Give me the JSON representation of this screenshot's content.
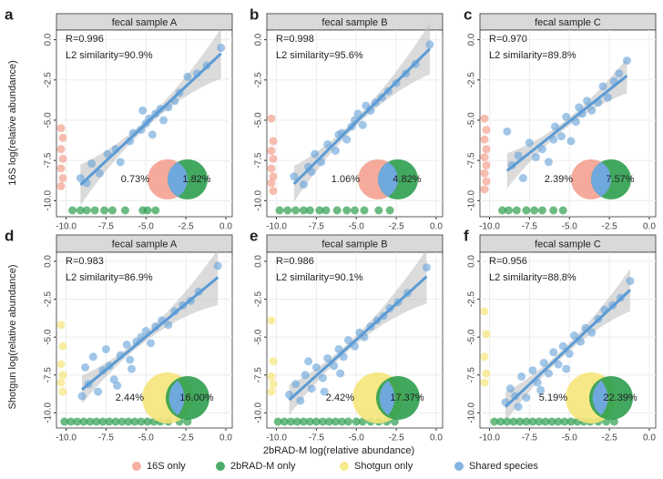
{
  "chart_data": [
    {
      "type": "scatter",
      "panel": "a",
      "title": "fecal sample A",
      "annotations": [
        "R=0.996",
        "L2 similarity=90.9%"
      ],
      "venn": {
        "values": [
          0.73,
          1.82
        ],
        "value_labels": [
          "0.73%",
          "1.82%"
        ],
        "colors": [
          "#f4a190",
          "#2e9e4f"
        ]
      },
      "xlim": [
        -10.6,
        0.4
      ],
      "ylim": [
        -11,
        0.6
      ],
      "xticks": [
        {
          "value": -10,
          "label": "-10.0"
        },
        -7.5,
        {
          "value": -5,
          "label": "-5.0"
        },
        -2.5,
        {
          "value": 0,
          "label": "0.0"
        }
      ],
      "yticks": [
        {
          "value": -10,
          "label": "-10.0"
        },
        -7.5,
        {
          "value": -5,
          "label": "-5.0"
        },
        -2.5,
        {
          "value": 0,
          "label": "0.0"
        }
      ],
      "grid": true,
      "shared": {
        "color": "#6fa8dc",
        "x": [
          -9.1,
          -8.7,
          -8.4,
          -7.9,
          -7.4,
          -6.6,
          -6.0,
          -5.8,
          -5.3,
          -5.0,
          -4.8,
          -4.6,
          -4.4,
          -4.1,
          -3.9,
          -3.6,
          -3.2,
          -2.9,
          -2.4,
          -1.8,
          -1.2,
          -0.3,
          -5.2,
          -6.9
        ],
        "values": [
          -8.6,
          -8.9,
          -7.7,
          -8.3,
          -7.1,
          -7.6,
          -6.3,
          -5.8,
          -5.6,
          -5.2,
          -4.9,
          -5.9,
          -4.6,
          -4.3,
          -5.0,
          -4.2,
          -3.8,
          -3.3,
          -2.3,
          -2.1,
          -1.6,
          -0.5,
          -4.4,
          -6.8
        ]
      },
      "left_only": {
        "color": "#f4a190",
        "values": [
          -5.5,
          -6.1,
          -6.8,
          -7.4,
          -8.0,
          -8.6,
          -9.1
        ]
      },
      "bottom_only": {
        "color": "#2e9e4f",
        "x": [
          -9.6,
          -9.1,
          -8.7,
          -8.2,
          -7.6,
          -7.1,
          -6.3,
          -5.2,
          -4.9,
          -4.4
        ]
      }
    },
    {
      "type": "scatter",
      "panel": "b",
      "title": "fecal sample B",
      "annotations": [
        "R=0.998",
        "L2 similarity=95.6%"
      ],
      "venn": {
        "values": [
          1.06,
          4.82
        ],
        "value_labels": [
          "1.06%",
          "4.82%"
        ],
        "colors": [
          "#f4a190",
          "#2e9e4f"
        ]
      },
      "xlim": [
        -10.6,
        0.4
      ],
      "ylim": [
        -11,
        0.6
      ],
      "xticks": [
        {
          "value": -10,
          "label": "-10.0"
        },
        -7.5,
        {
          "value": -5,
          "label": "-5.0"
        },
        -2.5,
        {
          "value": 0,
          "label": "0.0"
        }
      ],
      "yticks": [
        {
          "value": -10,
          "label": "-10.0"
        },
        -7.5,
        {
          "value": -5,
          "label": "-5.0"
        },
        -2.5,
        {
          "value": 0,
          "label": "0.0"
        }
      ],
      "grid": true,
      "shared": {
        "color": "#6fa8dc",
        "x": [
          -8.9,
          -8.3,
          -8.0,
          -7.6,
          -7.2,
          -6.8,
          -6.3,
          -5.9,
          -5.6,
          -5.3,
          -5.1,
          -4.9,
          -4.6,
          -4.4,
          -4.1,
          -3.8,
          -3.4,
          -3.0,
          -2.5,
          -1.9,
          -1.3,
          -0.4,
          -6.1,
          -7.8
        ],
        "values": [
          -8.5,
          -9.0,
          -7.9,
          -7.1,
          -7.6,
          -6.5,
          -6.9,
          -5.8,
          -6.2,
          -5.4,
          -5.0,
          -4.6,
          -5.3,
          -4.1,
          -4.4,
          -3.9,
          -3.6,
          -3.2,
          -2.7,
          -2.1,
          -1.5,
          -0.3,
          -5.9,
          -8.2
        ]
      },
      "left_only": {
        "color": "#f4a190",
        "values": [
          -4.9,
          -6.3,
          -6.9,
          -7.4,
          -8.0,
          -8.5,
          -8.9,
          -9.4
        ]
      },
      "bottom_only": {
        "color": "#2e9e4f",
        "x": [
          -9.8,
          -9.3,
          -8.8,
          -8.3,
          -7.9,
          -7.3,
          -6.9,
          -6.2,
          -5.6,
          -5.1,
          -4.5,
          -3.6,
          -2.9
        ]
      }
    },
    {
      "type": "scatter",
      "panel": "c",
      "title": "fecal sample C",
      "annotations": [
        "R=0.970",
        "L2 similarity=89.8%"
      ],
      "venn": {
        "values": [
          2.39,
          7.57
        ],
        "value_labels": [
          "2.39%",
          "7.57%"
        ],
        "colors": [
          "#f4a190",
          "#2e9e4f"
        ]
      },
      "xlim": [
        -10.6,
        0.4
      ],
      "ylim": [
        -11,
        0.6
      ],
      "xticks": [
        {
          "value": -10,
          "label": "-10.0"
        },
        -7.5,
        {
          "value": -5,
          "label": "-5.0"
        },
        -2.5,
        {
          "value": 0,
          "label": "0.0"
        }
      ],
      "yticks": [
        {
          "value": -10,
          "label": "-10.0"
        },
        -7.5,
        {
          "value": -5,
          "label": "-5.0"
        },
        -2.5,
        {
          "value": 0,
          "label": "0.0"
        }
      ],
      "grid": true,
      "shared": {
        "color": "#6fa8dc",
        "x": [
          -8.6,
          -8.2,
          -7.9,
          -7.5,
          -7.1,
          -6.7,
          -6.3,
          -5.9,
          -5.5,
          -5.2,
          -4.9,
          -4.6,
          -4.2,
          -3.9,
          -3.6,
          -3.2,
          -2.9,
          -2.6,
          -2.2,
          -1.9,
          -1.4,
          -8.9,
          -6.0,
          -4.4
        ],
        "values": [
          -7.8,
          -7.2,
          -8.6,
          -6.4,
          -7.3,
          -6.8,
          -7.6,
          -5.4,
          -6.0,
          -4.8,
          -6.3,
          -5.1,
          -4.6,
          -3.8,
          -4.4,
          -3.9,
          -2.9,
          -3.6,
          -2.6,
          -2.1,
          -1.3,
          -5.7,
          -6.2,
          -4.2
        ]
      },
      "left_only": {
        "color": "#f4a190",
        "values": [
          -4.9,
          -5.6,
          -6.2,
          -6.8,
          -7.3,
          -7.8,
          -8.3,
          -8.8,
          -9.3
        ]
      },
      "bottom_only": {
        "color": "#2e9e4f",
        "x": [
          -9.2,
          -8.8,
          -8.3,
          -7.7,
          -7.2,
          -6.7,
          -6.0,
          -5.4
        ]
      }
    },
    {
      "type": "scatter",
      "panel": "d",
      "title": "fecal sample A",
      "annotations": [
        "R=0.983",
        "L2 similarity=86.9%"
      ],
      "venn": {
        "values": [
          2.44,
          16.0
        ],
        "value_labels": [
          "2.44%",
          "16.00%"
        ],
        "colors": [
          "#f5e67a",
          "#2e9e4f"
        ]
      },
      "xlim": [
        -10.6,
        0.4
      ],
      "ylim": [
        -11,
        0.6
      ],
      "xticks": [
        {
          "value": -10,
          "label": "-10.0"
        },
        -7.5,
        {
          "value": -5,
          "label": "-5.0"
        },
        -2.5,
        {
          "value": 0,
          "label": "0.0"
        }
      ],
      "yticks": [
        {
          "value": -10,
          "label": "-10.0"
        },
        -7.5,
        {
          "value": -5,
          "label": "-5.0"
        },
        -2.5,
        {
          "value": 0,
          "label": "0.0"
        }
      ],
      "grid": true,
      "shared": {
        "color": "#6fa8dc",
        "x": [
          -9.0,
          -8.6,
          -8.3,
          -8.0,
          -7.7,
          -7.3,
          -7.0,
          -6.6,
          -6.2,
          -5.9,
          -5.6,
          -5.3,
          -5.0,
          -4.7,
          -4.4,
          -4.0,
          -3.6,
          -3.2,
          -2.7,
          -2.2,
          -1.7,
          -0.5,
          -8.8,
          -7.5,
          -6.8,
          -6.0
        ],
        "values": [
          -8.9,
          -8.1,
          -6.3,
          -8.6,
          -7.2,
          -6.9,
          -7.8,
          -6.2,
          -5.5,
          -7.1,
          -5.3,
          -5.0,
          -4.6,
          -5.4,
          -4.3,
          -3.9,
          -4.2,
          -3.3,
          -2.9,
          -2.6,
          -2.0,
          -0.3,
          -7.0,
          -5.8,
          -8.2,
          -6.5
        ]
      },
      "left_only": {
        "color": "#f5e67a",
        "values": [
          -4.2,
          -5.6,
          -6.8,
          -7.5,
          -8.0,
          -8.6
        ]
      },
      "bottom_only": {
        "color": "#2e9e4f",
        "x": [
          -10.1,
          -9.7,
          -9.3,
          -8.9,
          -8.5,
          -8.1,
          -7.7,
          -7.3,
          -6.9,
          -6.5,
          -6.1,
          -5.7,
          -5.3,
          -4.9,
          -4.5,
          -4.1,
          -3.6,
          -2.9,
          -2.4
        ]
      }
    },
    {
      "type": "scatter",
      "panel": "e",
      "title": "fecal sample B",
      "annotations": [
        "R=0.986",
        "L2 similarity=90.1%"
      ],
      "venn": {
        "values": [
          2.42,
          17.37
        ],
        "value_labels": [
          "2.42%",
          "17.37%"
        ],
        "colors": [
          "#f5e67a",
          "#2e9e4f"
        ]
      },
      "xlim": [
        -10.6,
        0.4
      ],
      "ylim": [
        -11,
        0.6
      ],
      "xticks": [
        {
          "value": -10,
          "label": "-10.0"
        },
        -7.5,
        {
          "value": -5,
          "label": "-5.0"
        },
        -2.5,
        {
          "value": 0,
          "label": "0.0"
        }
      ],
      "yticks": [
        {
          "value": -10,
          "label": "-10.0"
        },
        -7.5,
        {
          "value": -5,
          "label": "-5.0"
        },
        -2.5,
        {
          "value": 0,
          "label": "0.0"
        }
      ],
      "grid": true,
      "shared": {
        "color": "#6fa8dc",
        "x": [
          -9.2,
          -8.8,
          -8.5,
          -8.2,
          -7.8,
          -7.5,
          -7.1,
          -6.8,
          -6.4,
          -6.1,
          -5.8,
          -5.5,
          -5.1,
          -4.8,
          -4.5,
          -4.1,
          -3.7,
          -3.3,
          -2.9,
          -2.4,
          -1.8,
          -0.6,
          -8.0,
          -7.0,
          -6.0
        ],
        "values": [
          -8.8,
          -8.1,
          -9.2,
          -7.5,
          -8.4,
          -7.0,
          -7.7,
          -6.4,
          -6.9,
          -5.8,
          -6.3,
          -5.2,
          -5.6,
          -4.7,
          -5.0,
          -4.3,
          -3.9,
          -3.6,
          -3.1,
          -2.7,
          -2.1,
          -0.4,
          -6.6,
          -8.6,
          -7.4
        ]
      },
      "left_only": {
        "color": "#f5e67a",
        "values": [
          -3.9,
          -6.6,
          -7.6,
          -8.1,
          -8.6
        ]
      },
      "bottom_only": {
        "color": "#2e9e4f",
        "x": [
          -9.9,
          -9.5,
          -9.1,
          -8.7,
          -8.3,
          -7.9,
          -7.5,
          -7.1,
          -6.7,
          -6.3,
          -5.9,
          -5.5,
          -5.0,
          -4.6,
          -4.1,
          -3.6,
          -3.1,
          -2.6
        ]
      }
    },
    {
      "type": "scatter",
      "panel": "f",
      "title": "fecal sample C",
      "annotations": [
        "R=0.956",
        "L2 similarity=88.8%"
      ],
      "venn": {
        "values": [
          5.19,
          22.39
        ],
        "value_labels": [
          "5.19%",
          "22.39%"
        ],
        "colors": [
          "#f5e67a",
          "#2e9e4f"
        ]
      },
      "xlim": [
        -10.6,
        0.4
      ],
      "ylim": [
        -11,
        0.6
      ],
      "xticks": [
        {
          "value": -10,
          "label": "-10.0"
        },
        -7.5,
        {
          "value": -5,
          "label": "-5.0"
        },
        -2.5,
        {
          "value": 0,
          "label": "0.0"
        }
      ],
      "yticks": [
        {
          "value": -10,
          "label": "-10.0"
        },
        -7.5,
        {
          "value": -5,
          "label": "-5.0"
        },
        -2.5,
        {
          "value": 0,
          "label": "0.0"
        }
      ],
      "grid": true,
      "shared": {
        "color": "#6fa8dc",
        "x": [
          -9.0,
          -8.7,
          -8.4,
          -8.0,
          -7.7,
          -7.3,
          -7.0,
          -6.6,
          -6.3,
          -6.0,
          -5.7,
          -5.4,
          -5.0,
          -4.7,
          -4.3,
          -4.0,
          -3.6,
          -3.2,
          -2.8,
          -2.3,
          -1.8,
          -1.2,
          -8.2,
          -6.8,
          -5.2
        ],
        "values": [
          -9.3,
          -8.4,
          -8.9,
          -7.6,
          -9.0,
          -7.2,
          -8.0,
          -6.7,
          -7.4,
          -6.0,
          -6.8,
          -5.6,
          -6.1,
          -4.9,
          -5.3,
          -4.4,
          -4.7,
          -3.8,
          -3.2,
          -2.9,
          -2.4,
          -1.3,
          -9.6,
          -8.5,
          -7.1
        ]
      },
      "left_only": {
        "color": "#f5e67a",
        "values": [
          -3.3,
          -4.8,
          -6.3,
          -7.4,
          -8.0
        ]
      },
      "bottom_only": {
        "color": "#2e9e4f",
        "x": [
          -9.7,
          -9.3,
          -8.9,
          -8.5,
          -8.1,
          -7.7,
          -7.3,
          -6.9,
          -6.5,
          -6.1,
          -5.7,
          -5.3,
          -4.9,
          -4.5,
          -4.1,
          -3.7,
          -3.2,
          -2.7,
          -2.2
        ]
      }
    }
  ],
  "axis_labels": {
    "y": [
      "16S log(relative abundance)",
      "Shotgun log(relative abundance)"
    ],
    "x": "2bRAD-M log(relative abundance)"
  },
  "legend": [
    {
      "name": "16S only",
      "color": "#f4a190"
    },
    {
      "name": "2bRAD-M only",
      "color": "#2e9e4f"
    },
    {
      "name": "Shotgun only",
      "color": "#f5e67a"
    },
    {
      "name": "Shared species",
      "color": "#6fa8dc"
    }
  ]
}
